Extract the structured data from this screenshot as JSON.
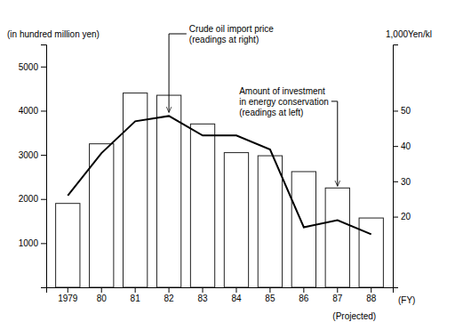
{
  "chart_data": {
    "type": "bar",
    "categories": [
      "1979",
      "80",
      "81",
      "82",
      "83",
      "84",
      "85",
      "86",
      "87",
      "88"
    ],
    "series": [
      {
        "type": "bar",
        "color": "#ffffff",
        "values": [
          1900,
          3250,
          4400,
          4350,
          3700,
          3050,
          2980,
          2620,
          2250,
          1570
        ]
      },
      {
        "type": "line",
        "axis": "y2",
        "color": "#000000",
        "values": [
          26,
          38,
          47,
          48.5,
          43,
          43,
          39,
          17,
          19,
          15
        ]
      }
    ],
    "ylim": [
      0,
      5500
    ],
    "yticks": [
      1000,
      2000,
      3000,
      4000,
      5000
    ],
    "y2lim": [
      0,
      68.75
    ],
    "y2ticks": [
      20,
      30,
      40,
      50
    ],
    "y_label": "(in hundred million yen)",
    "y2_label": "1,000Yen/kl",
    "x_label": "(FY)",
    "annotations": [
      "(Projected)",
      "Crude oil import price\n(readings at right)",
      "Amount of investment\nin energy conservation\n(readings at left)"
    ],
    "grid": false
  }
}
